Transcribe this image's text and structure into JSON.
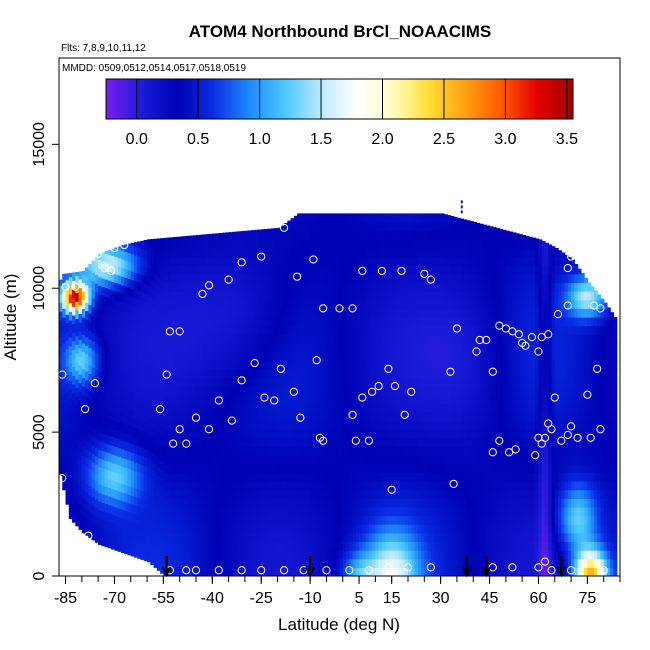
{
  "chart_data": {
    "type": "heatmap",
    "title": "ATOM4 Northbound BrCl_NOAACIMS",
    "annotation_flights": "Flts: 7,8,9,10,11,12",
    "annotation_dates": "MMDD: 0509,0512,0514,0517,0518,0519",
    "xlabel": "Latitude (deg N)",
    "ylabel": "Altitude (m)",
    "xlim": [
      -87,
      85
    ],
    "ylim": [
      0,
      18000
    ],
    "x_ticks": [
      -85,
      -70,
      -55,
      -40,
      -25,
      -10,
      5,
      15,
      30,
      45,
      60,
      75
    ],
    "y_ticks": [
      0,
      5000,
      10000,
      15000
    ],
    "colorbar": {
      "range": [
        -0.25,
        3.55
      ],
      "ticks": [
        0.0,
        0.5,
        1.0,
        1.5,
        2.0,
        2.5,
        3.0,
        3.5
      ],
      "tick_labels": [
        "0.0",
        "0.5",
        "1.0",
        "1.5",
        "2.0",
        "2.5",
        "3.0",
        "3.5"
      ],
      "colors": [
        "#7a1df0",
        "#1b1bd8",
        "#0000b4",
        "#0a2fe6",
        "#1f8bff",
        "#4dc8ff",
        "#bfeaff",
        "#ffffff",
        "#fffcc0",
        "#ffdd33",
        "#ffa010",
        "#ff5a00",
        "#e60000",
        "#a00000"
      ]
    },
    "profile_markers_latitude": [
      -54,
      -10,
      38,
      44,
      67
    ],
    "flight_track_points": [
      {
        "lat": -85,
        "alt": 10050
      },
      {
        "lat": -82,
        "alt": 10050
      },
      {
        "lat": -86,
        "alt": 7000
      },
      {
        "lat": -76,
        "alt": 6700
      },
      {
        "lat": -79,
        "alt": 5800
      },
      {
        "lat": -86,
        "alt": 3400
      },
      {
        "lat": -78,
        "alt": 1400
      },
      {
        "lat": -71,
        "alt": 10600
      },
      {
        "lat": -73,
        "alt": 10700
      },
      {
        "lat": -75,
        "alt": 11200
      },
      {
        "lat": -70,
        "alt": 11400
      },
      {
        "lat": -67,
        "alt": 11500
      },
      {
        "lat": -56,
        "alt": 5800
      },
      {
        "lat": -53,
        "alt": 8500
      },
      {
        "lat": -50,
        "alt": 8500
      },
      {
        "lat": -54,
        "alt": 7000
      },
      {
        "lat": -52,
        "alt": 4600
      },
      {
        "lat": -50,
        "alt": 5100
      },
      {
        "lat": -48,
        "alt": 4600
      },
      {
        "lat": -45,
        "alt": 5500
      },
      {
        "lat": -41,
        "alt": 5100
      },
      {
        "lat": -38,
        "alt": 6100
      },
      {
        "lat": -34,
        "alt": 5400
      },
      {
        "lat": -31,
        "alt": 6800
      },
      {
        "lat": -43,
        "alt": 9800
      },
      {
        "lat": -41,
        "alt": 10100
      },
      {
        "lat": -35,
        "alt": 10300
      },
      {
        "lat": -31,
        "alt": 10900
      },
      {
        "lat": -25,
        "alt": 11100
      },
      {
        "lat": -18,
        "alt": 12100
      },
      {
        "lat": -27,
        "alt": 7400
      },
      {
        "lat": -24,
        "alt": 6200
      },
      {
        "lat": -21,
        "alt": 6100
      },
      {
        "lat": -19,
        "alt": 7200
      },
      {
        "lat": -15,
        "alt": 6400
      },
      {
        "lat": -13,
        "alt": 5500
      },
      {
        "lat": -8,
        "alt": 7500
      },
      {
        "lat": -7,
        "alt": 4800
      },
      {
        "lat": -6,
        "alt": 4700
      },
      {
        "lat": -9,
        "alt": 11000
      },
      {
        "lat": -14,
        "alt": 10400
      },
      {
        "lat": -6,
        "alt": 9300
      },
      {
        "lat": -1,
        "alt": 9300
      },
      {
        "lat": 3,
        "alt": 9300
      },
      {
        "lat": 6,
        "alt": 10600
      },
      {
        "lat": 12,
        "alt": 10600
      },
      {
        "lat": 18,
        "alt": 10600
      },
      {
        "lat": 25,
        "alt": 10500
      },
      {
        "lat": 27,
        "alt": 10300
      },
      {
        "lat": 3,
        "alt": 5600
      },
      {
        "lat": 4,
        "alt": 4700
      },
      {
        "lat": 8,
        "alt": 4700
      },
      {
        "lat": 6,
        "alt": 6200
      },
      {
        "lat": 9,
        "alt": 6400
      },
      {
        "lat": 11,
        "alt": 6600
      },
      {
        "lat": 14,
        "alt": 7200
      },
      {
        "lat": 16,
        "alt": 6600
      },
      {
        "lat": 19,
        "alt": 5600
      },
      {
        "lat": 21,
        "alt": 6400
      },
      {
        "lat": 15,
        "alt": 3000
      },
      {
        "lat": 33,
        "alt": 7100
      },
      {
        "lat": 34,
        "alt": 3200
      },
      {
        "lat": 35,
        "alt": 8600
      },
      {
        "lat": 41,
        "alt": 7800
      },
      {
        "lat": 42,
        "alt": 8200
      },
      {
        "lat": 44,
        "alt": 8200
      },
      {
        "lat": 46,
        "alt": 7100
      },
      {
        "lat": 46,
        "alt": 4300
      },
      {
        "lat": 48,
        "alt": 4700
      },
      {
        "lat": 51,
        "alt": 4300
      },
      {
        "lat": 53,
        "alt": 4400
      },
      {
        "lat": 48,
        "alt": 8700
      },
      {
        "lat": 50,
        "alt": 8600
      },
      {
        "lat": 52,
        "alt": 8500
      },
      {
        "lat": 54,
        "alt": 8400
      },
      {
        "lat": 55,
        "alt": 8100
      },
      {
        "lat": 56,
        "alt": 8000
      },
      {
        "lat": 58,
        "alt": 8300
      },
      {
        "lat": 60,
        "alt": 7800
      },
      {
        "lat": 61,
        "alt": 8300
      },
      {
        "lat": 63,
        "alt": 8400
      },
      {
        "lat": 59,
        "alt": 4200
      },
      {
        "lat": 60,
        "alt": 4800
      },
      {
        "lat": 61,
        "alt": 4600
      },
      {
        "lat": 62,
        "alt": 4800
      },
      {
        "lat": 63,
        "alt": 5300
      },
      {
        "lat": 64,
        "alt": 5100
      },
      {
        "lat": 65,
        "alt": 6200
      },
      {
        "lat": 67,
        "alt": 4700
      },
      {
        "lat": 69,
        "alt": 4900
      },
      {
        "lat": 70,
        "alt": 5200
      },
      {
        "lat": 72,
        "alt": 4800
      },
      {
        "lat": 76,
        "alt": 4800
      },
      {
        "lat": 75,
        "alt": 6300
      },
      {
        "lat": 78,
        "alt": 7200
      },
      {
        "lat": 79,
        "alt": 5100
      },
      {
        "lat": 66,
        "alt": 9100
      },
      {
        "lat": 69,
        "alt": 9400
      },
      {
        "lat": 77,
        "alt": 9400
      },
      {
        "lat": 79,
        "alt": 9300
      },
      {
        "lat": 69,
        "alt": 10700
      },
      {
        "lat": 70,
        "alt": 11100
      },
      {
        "lat": -53,
        "alt": 200
      },
      {
        "lat": -48,
        "alt": 200
      },
      {
        "lat": -45,
        "alt": 200
      },
      {
        "lat": -38,
        "alt": 200
      },
      {
        "lat": -31,
        "alt": 200
      },
      {
        "lat": -25,
        "alt": 200
      },
      {
        "lat": -18,
        "alt": 200
      },
      {
        "lat": -12,
        "alt": 200
      },
      {
        "lat": -5,
        "alt": 200
      },
      {
        "lat": 2,
        "alt": 200
      },
      {
        "lat": 8,
        "alt": 200
      },
      {
        "lat": 14,
        "alt": 300
      },
      {
        "lat": 20,
        "alt": 300
      },
      {
        "lat": 27,
        "alt": 300
      },
      {
        "lat": 46,
        "alt": 300
      },
      {
        "lat": 52,
        "alt": 300
      },
      {
        "lat": 60,
        "alt": 300
      },
      {
        "lat": 62,
        "alt": 500
      },
      {
        "lat": 64,
        "alt": 200
      },
      {
        "lat": 70,
        "alt": 200
      },
      {
        "lat": 80,
        "alt": 200
      }
    ],
    "grid": false
  }
}
